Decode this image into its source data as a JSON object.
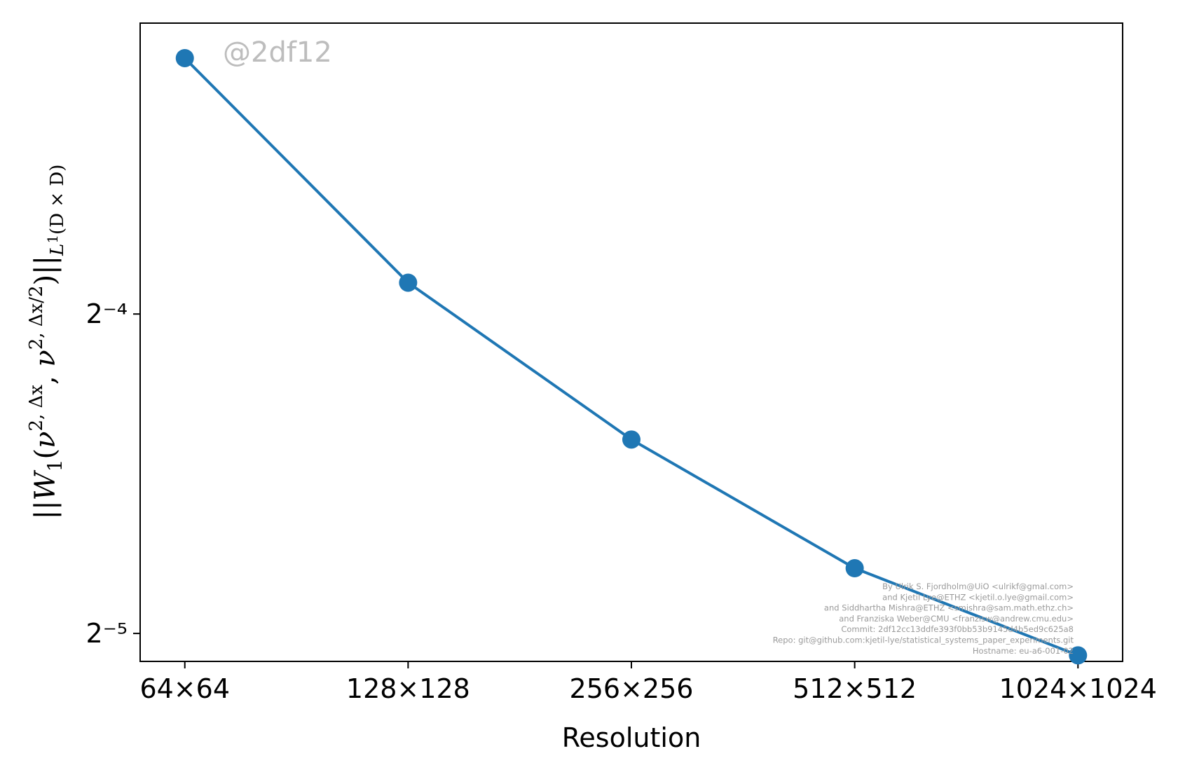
{
  "chart_data": {
    "type": "line",
    "x": [
      "64×64",
      "128×128",
      "256×256",
      "512×512",
      "1024×1024"
    ],
    "resolutions": [
      64,
      128,
      256,
      512,
      1024
    ],
    "series": [
      {
        "values": [
          0.1089,
          0.0669,
          0.0476,
          0.036,
          0.0298
        ],
        "color": "#1f77b4"
      }
    ],
    "xlabel": "Resolution",
    "ylabel": "||W₁(ν²˒Δx, ν²˒Δx/2)||L¹(D×D)",
    "yscale": "log2",
    "ylim": [
      0.02941,
      0.1175
    ],
    "yticks": [
      {
        "value": 0.0625,
        "label": "2⁻⁴"
      },
      {
        "value": 0.03125,
        "label": "2⁻⁵"
      }
    ],
    "grid": false,
    "watermark": "@2df12",
    "credits": [
      "By Ulrik S. Fjordholm@UiO <ulrikf@gmal.com>",
      "and Kjetil Lye@ETHZ <kjetil.o.lye@gmail.com>",
      "and Siddhartha Mishra@ETHZ <smishra@sam.math.ethz.ch>",
      "and Franziska Weber@CMU <franzisw@andrew.cmu.edu>",
      "Commit: 2df12cc13ddfe393f0bb53b9145d4b5ed9c625a8",
      "Repo: git@github.com:kjetil-lye/statistical_systems_paper_experiments.git",
      "Hostname: eu-a6-001-02"
    ]
  }
}
